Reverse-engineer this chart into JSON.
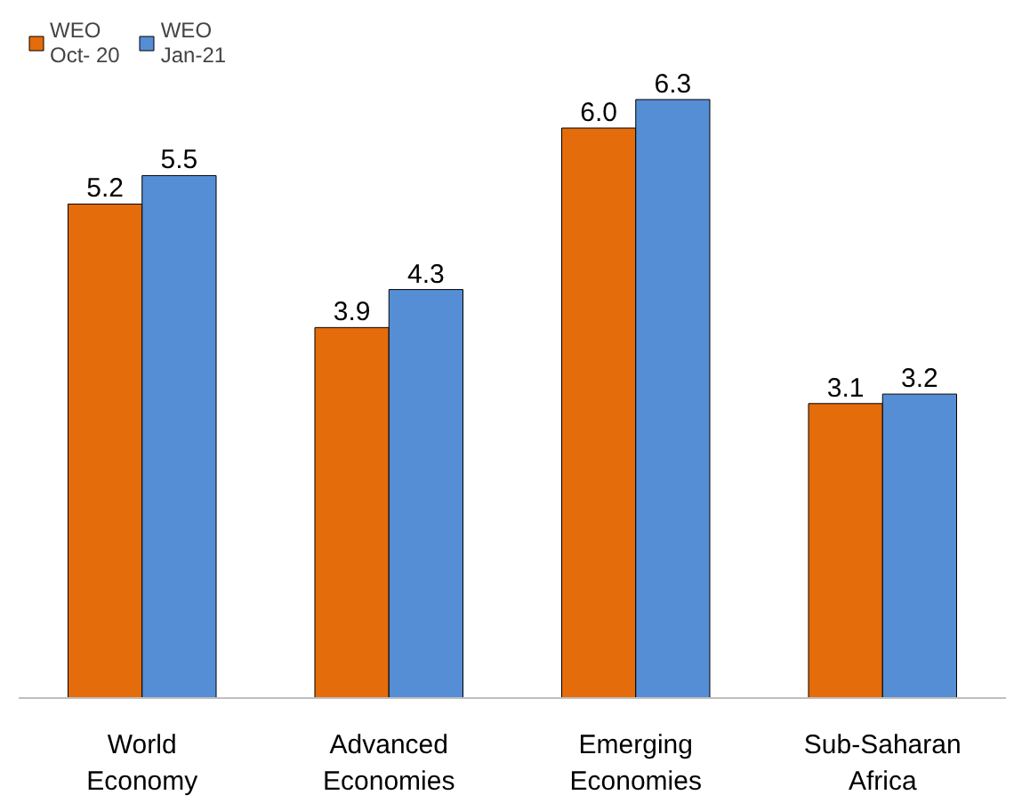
{
  "chart_data": {
    "type": "bar",
    "categories": [
      "World\nEconomy",
      "Advanced\nEconomies",
      "Emerging\nEconomies",
      "Sub-Saharan\nAfrica"
    ],
    "series": [
      {
        "name": "WEO\nOct- 20",
        "color": "#e46c0a",
        "values": [
          5.2,
          3.9,
          6.0,
          3.1
        ],
        "value_labels": [
          "5.2",
          "3.9",
          "6.0",
          "3.1"
        ]
      },
      {
        "name": "WEO\nJan-21",
        "color": "#558ed5",
        "values": [
          5.5,
          4.3,
          6.3,
          3.2
        ],
        "value_labels": [
          "5.5",
          "4.3",
          "6.3",
          "3.2"
        ]
      }
    ],
    "legend": "top left"
  }
}
